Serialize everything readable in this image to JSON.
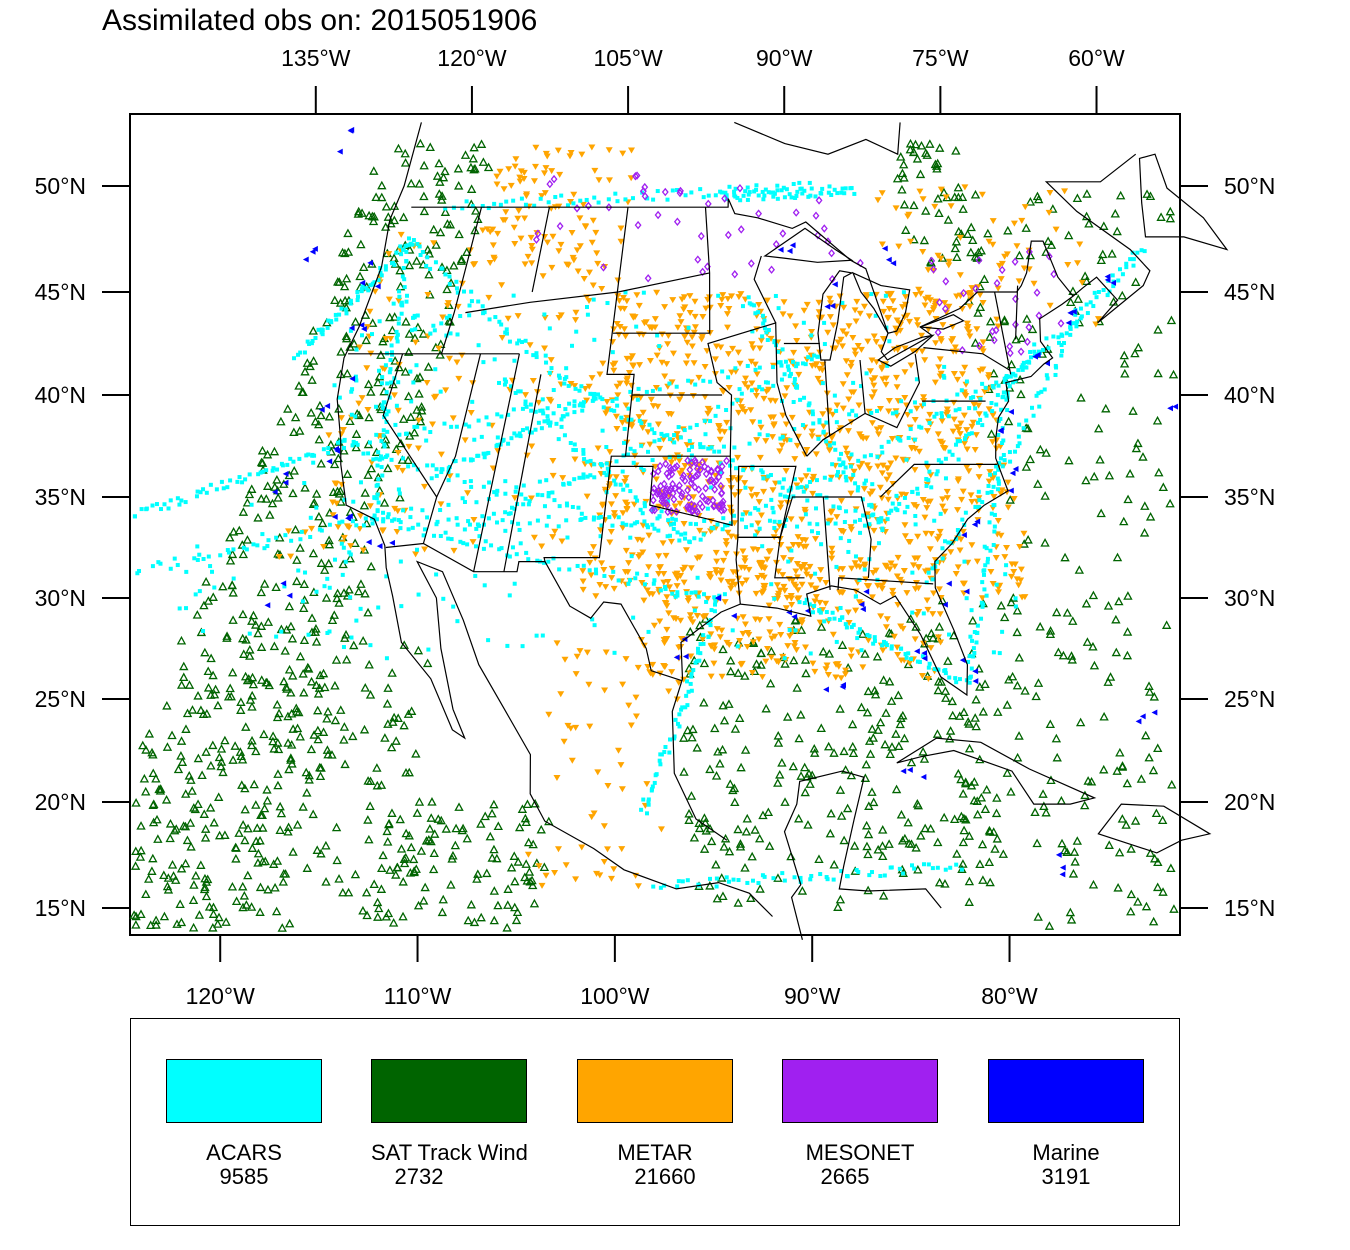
{
  "title": "Assimilated obs on: 2015051906",
  "map": {
    "top_lon_ticks": [
      {
        "lon": -135,
        "label": "135°W"
      },
      {
        "lon": -120,
        "label": "120°W"
      },
      {
        "lon": -105,
        "label": "105°W"
      },
      {
        "lon": -90,
        "label": "90°W"
      },
      {
        "lon": -75,
        "label": "75°W"
      },
      {
        "lon": -60,
        "label": "60°W"
      }
    ],
    "bottom_lon_ticks": [
      {
        "lon": -120,
        "label": "120°W"
      },
      {
        "lon": -110,
        "label": "110°W"
      },
      {
        "lon": -100,
        "label": "100°W"
      },
      {
        "lon": -90,
        "label": "90°W"
      },
      {
        "lon": -80,
        "label": "80°W"
      }
    ],
    "lat_ticks": [
      {
        "lat": 50,
        "label": "50°N"
      },
      {
        "lat": 45,
        "label": "45°N"
      },
      {
        "lat": 40,
        "label": "40°N"
      },
      {
        "lat": 35,
        "label": "35°N"
      },
      {
        "lat": 30,
        "label": "30°N"
      },
      {
        "lat": 25,
        "label": "25°N"
      },
      {
        "lat": 20,
        "label": "20°N"
      },
      {
        "lat": 15,
        "label": "15°N"
      }
    ]
  },
  "legend": {
    "items": [
      {
        "name": "ACARS",
        "count": "9585",
        "color": "#00ffff",
        "marker": "square"
      },
      {
        "name": "SAT Track Wind",
        "count": "2732",
        "color": "#006400",
        "marker": "triangle-up-open"
      },
      {
        "name": "METAR",
        "count": "21660",
        "color": "#ffa500",
        "marker": "triangle-down"
      },
      {
        "name": "MESONET",
        "count": "2665",
        "color": "#a020f0",
        "marker": "diamond-open"
      },
      {
        "name": "Marine",
        "count": "3191",
        "color": "#0000ff",
        "marker": "triangle-left"
      }
    ]
  }
}
